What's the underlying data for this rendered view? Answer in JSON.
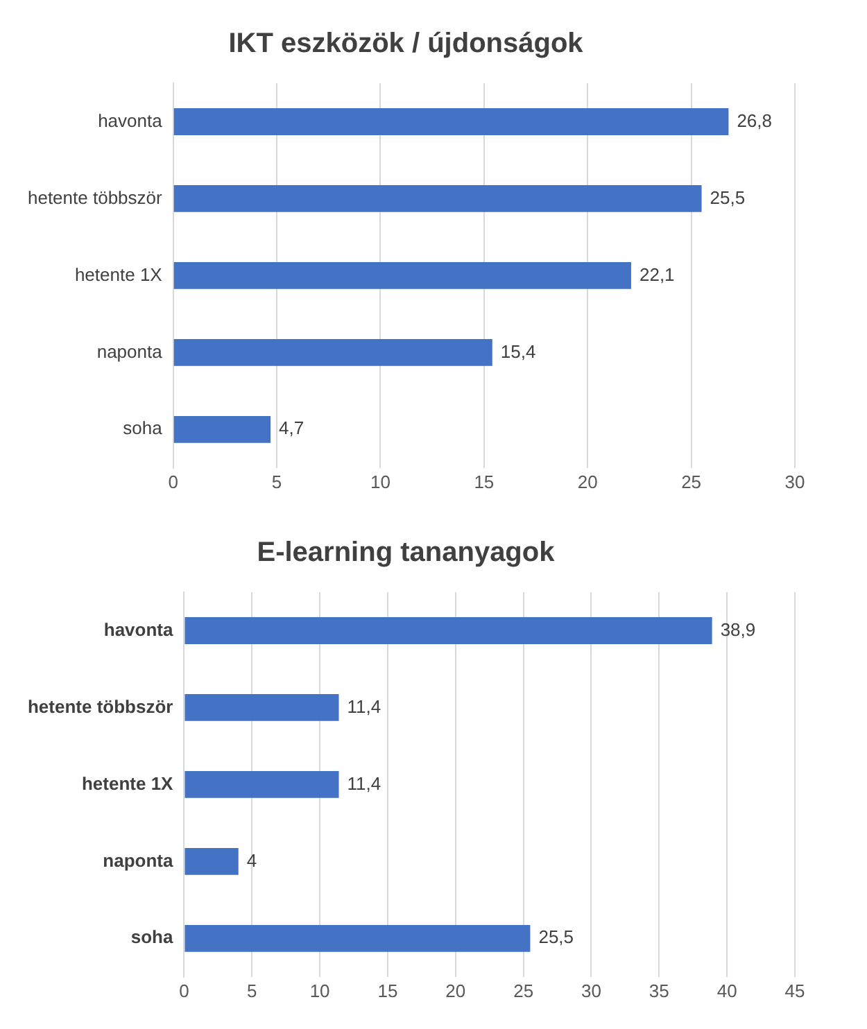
{
  "chart_data": [
    {
      "type": "bar",
      "orientation": "horizontal",
      "title": "IKT eszközök / újdonságok",
      "categories": [
        "havonta",
        "hetente többször",
        "hetente 1X",
        "naponta",
        "soha"
      ],
      "values": [
        26.8,
        25.5,
        22.1,
        15.4,
        4.7
      ],
      "value_labels": [
        "26,8",
        "25,5",
        "22,1",
        "15,4",
        "4,7"
      ],
      "color": "#4472c4",
      "xlim": [
        0,
        30
      ],
      "xticks": [
        0,
        5,
        10,
        15,
        20,
        25,
        30
      ],
      "grid": "x",
      "legend": false
    },
    {
      "type": "bar",
      "orientation": "horizontal",
      "title": "E-learning tananyagok",
      "categories": [
        "havonta",
        "hetente többször",
        "hetente 1X",
        "naponta",
        "soha"
      ],
      "values": [
        38.9,
        11.4,
        11.4,
        4,
        25.5
      ],
      "value_labels": [
        "38,9",
        "11,4",
        "11,4",
        "4",
        "25,5"
      ],
      "color": "#4472c4",
      "xlim": [
        0,
        45
      ],
      "xticks": [
        0,
        5,
        10,
        15,
        20,
        25,
        30,
        35,
        40,
        45
      ],
      "grid": "x",
      "legend": false
    }
  ]
}
